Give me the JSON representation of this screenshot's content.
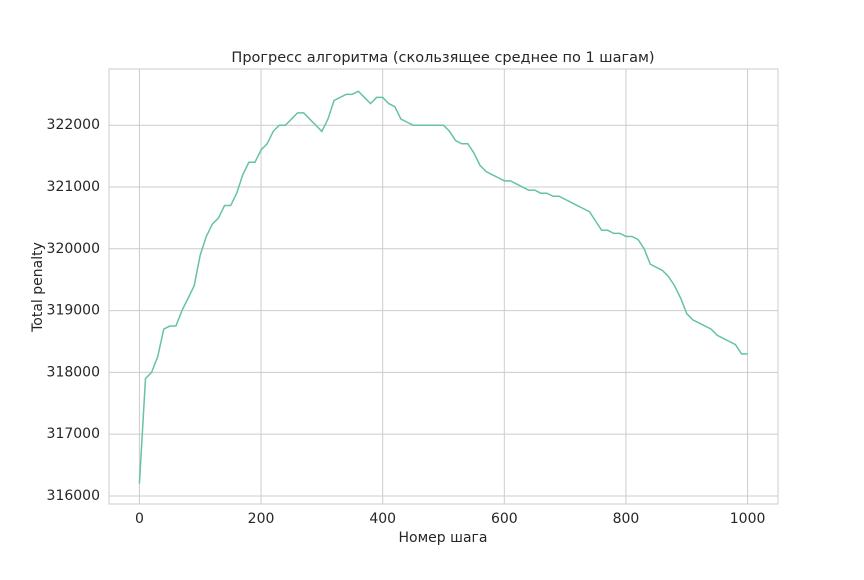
{
  "chart_data": {
    "type": "line",
    "title": "Прогресс алгоритма (скользящее среднее по 1 шагам)",
    "xlabel": "Номер шага",
    "ylabel": "Total penalty",
    "x": [
      0,
      10,
      20,
      30,
      40,
      50,
      60,
      70,
      80,
      90,
      100,
      110,
      120,
      130,
      140,
      150,
      160,
      170,
      180,
      190,
      200,
      210,
      220,
      230,
      240,
      250,
      260,
      270,
      280,
      290,
      300,
      310,
      320,
      330,
      340,
      350,
      360,
      370,
      380,
      390,
      400,
      410,
      420,
      430,
      440,
      450,
      460,
      470,
      480,
      490,
      500,
      510,
      520,
      530,
      540,
      550,
      560,
      570,
      580,
      590,
      600,
      610,
      620,
      630,
      640,
      650,
      660,
      670,
      680,
      690,
      700,
      710,
      720,
      730,
      740,
      750,
      760,
      770,
      780,
      790,
      800,
      810,
      820,
      830,
      840,
      850,
      860,
      870,
      880,
      890,
      900,
      910,
      920,
      930,
      940,
      950,
      960,
      970,
      980,
      990,
      1000
    ],
    "values": [
      316200,
      317900,
      318000,
      318250,
      318700,
      318750,
      318750,
      319000,
      319200,
      319400,
      319900,
      320200,
      320400,
      320500,
      320700,
      320700,
      320900,
      321200,
      321400,
      321400,
      321600,
      321700,
      321900,
      322000,
      322000,
      322100,
      322200,
      322200,
      322100,
      322000,
      321900,
      322100,
      322400,
      322450,
      322500,
      322500,
      322550,
      322450,
      322350,
      322450,
      322450,
      322350,
      322300,
      322100,
      322050,
      322000,
      322000,
      322000,
      322000,
      322000,
      322000,
      321900,
      321750,
      321700,
      321700,
      321550,
      321350,
      321250,
      321200,
      321150,
      321100,
      321100,
      321050,
      321000,
      320950,
      320950,
      320900,
      320900,
      320850,
      320850,
      320800,
      320750,
      320700,
      320650,
      320600,
      320450,
      320300,
      320300,
      320250,
      320250,
      320200,
      320200,
      320150,
      320000,
      319750,
      319700,
      319650,
      319550,
      319400,
      319200,
      318950,
      318850,
      318800,
      318750,
      318700,
      318600,
      318550,
      318500,
      318450,
      318300,
      318300
    ],
    "color": "#66c2a5",
    "xlim": [
      -50,
      1050
    ],
    "xticks": [
      0,
      200,
      400,
      600,
      800,
      1000
    ],
    "ylim": [
      315870,
      322910
    ],
    "yticks": [
      316000,
      317000,
      318000,
      319000,
      320000,
      321000,
      322000
    ],
    "grid": true
  }
}
